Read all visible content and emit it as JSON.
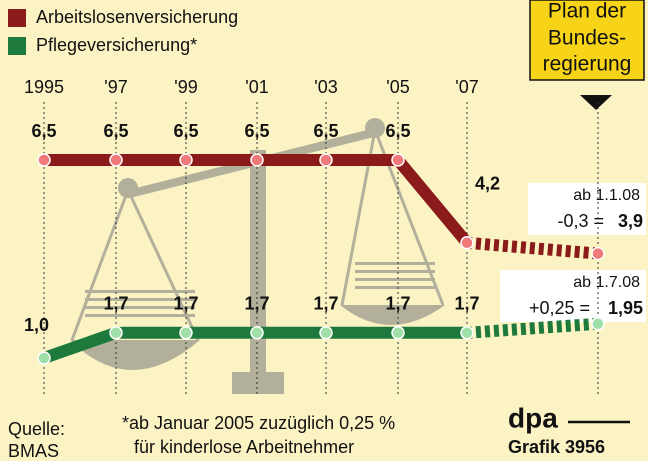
{
  "chart_data": {
    "type": "line",
    "categories": [
      "1995",
      "'97",
      "'99",
      "'01",
      "'03",
      "'05",
      "'07",
      null
    ],
    "series": [
      {
        "name": "Arbeitslosenversicherung",
        "color": "#8b1a1a",
        "values": [
          6.5,
          6.5,
          6.5,
          6.5,
          6.5,
          6.5,
          4.2,
          3.9
        ],
        "value_labels": [
          "6,5",
          "6,5",
          "6,5",
          "6,5",
          "6,5",
          "6,5",
          "4,2",
          "3,9"
        ]
      },
      {
        "name": "Pflegeversicherung*",
        "color": "#1e7a3c",
        "values": [
          1.0,
          1.7,
          1.7,
          1.7,
          1.7,
          1.7,
          1.7,
          1.95
        ],
        "value_labels": [
          "1,0",
          "1,7",
          "1,7",
          "1,7",
          "1,7",
          "1,7",
          "1,7",
          "1,95"
        ]
      }
    ],
    "plan": [
      "Plan der",
      "Bundes-",
      "regierung"
    ],
    "changes": [
      {
        "date": "ab 1.1.08",
        "change": "-0,3 ="
      },
      {
        "date": "ab 1.7.08",
        "change": "+0,25 ="
      }
    ],
    "source": [
      "Quelle:",
      "BMAS"
    ],
    "footnote": [
      "*ab Januar 2005 zuzüglich 0,25 %",
      "für kinderlose Arbeitnehmer"
    ],
    "credit": [
      "dpa",
      "Grafik 3956"
    ]
  }
}
